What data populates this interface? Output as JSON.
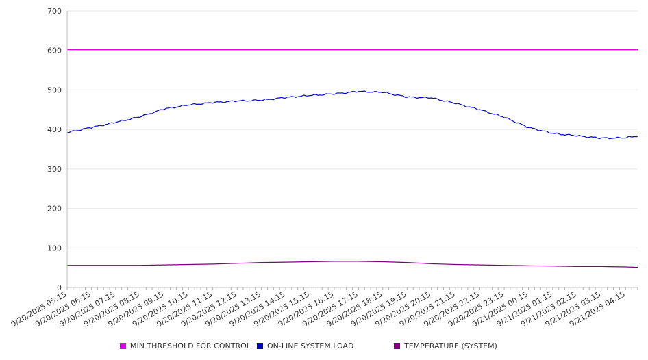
{
  "chart_data": {
    "type": "line",
    "ylim": [
      0,
      700
    ],
    "yticks": [
      0,
      100,
      200,
      300,
      400,
      500,
      600,
      700
    ],
    "x_start": "9/20/2025 05:15",
    "x_end": "9/21/2025 04:45",
    "x_tick_labels": [
      "9/20/2025 05:15",
      "9/20/2025 06:15",
      "9/20/2025 07:15",
      "9/20/2025 08:15",
      "9/20/2025 09:15",
      "9/20/2025 10:15",
      "9/20/2025 11:15",
      "9/20/2025 12:15",
      "9/20/2025 13:15",
      "9/20/2025 14:15",
      "9/20/2025 15:15",
      "9/20/2025 16:15",
      "9/20/2025 17:15",
      "9/20/2025 18:15",
      "9/20/2025 19:15",
      "9/20/2025 20:15",
      "9/20/2025 21:15",
      "9/20/2025 22:15",
      "9/20/2025 23:15",
      "9/21/2025 00:15",
      "9/21/2025 01:15",
      "9/21/2025 02:15",
      "9/21/2025 03:15",
      "9/21/2025 04:15"
    ],
    "grid": true,
    "legend_position": "bottom",
    "series": [
      {
        "name": "MIN THRESHOLD FOR CONTROL",
        "color": "#e000e0",
        "x": [
          "9/20/2025 05:15",
          "9/21/2025 04:45"
        ],
        "y": [
          602,
          602
        ]
      },
      {
        "name": "ON-LINE SYSTEM LOAD",
        "color": "#0000cc",
        "x": [
          "9/20/2025 05:15",
          "9/20/2025 06:15",
          "9/20/2025 07:15",
          "9/20/2025 08:15",
          "9/20/2025 09:15",
          "9/20/2025 10:15",
          "9/20/2025 11:15",
          "9/20/2025 12:15",
          "9/20/2025 13:15",
          "9/20/2025 14:15",
          "9/20/2025 15:15",
          "9/20/2025 16:15",
          "9/20/2025 17:15",
          "9/20/2025 18:15",
          "9/20/2025 19:15",
          "9/20/2025 20:15",
          "9/20/2025 21:15",
          "9/20/2025 22:15",
          "9/20/2025 23:15",
          "9/21/2025 00:15",
          "9/21/2025 01:15",
          "9/21/2025 02:15",
          "9/21/2025 03:15",
          "9/21/2025 04:15",
          "9/21/2025 04:45"
        ],
        "y": [
          392,
          405,
          418,
          432,
          452,
          462,
          468,
          472,
          474,
          481,
          486,
          490,
          496,
          494,
          482,
          480,
          466,
          450,
          431,
          405,
          390,
          384,
          378,
          379,
          384
        ]
      },
      {
        "name": "TEMPERATURE (SYSTEM)",
        "color": "#800080",
        "x": [
          "9/20/2025 05:15",
          "9/20/2025 06:15",
          "9/20/2025 07:15",
          "9/20/2025 08:15",
          "9/20/2025 09:15",
          "9/20/2025 10:15",
          "9/20/2025 11:15",
          "9/20/2025 12:15",
          "9/20/2025 13:15",
          "9/20/2025 14:15",
          "9/20/2025 15:15",
          "9/20/2025 16:15",
          "9/20/2025 17:15",
          "9/20/2025 18:15",
          "9/20/2025 19:15",
          "9/20/2025 20:15",
          "9/20/2025 21:15",
          "9/20/2025 22:15",
          "9/20/2025 23:15",
          "9/21/2025 00:15",
          "9/21/2025 01:15",
          "9/21/2025 02:15",
          "9/21/2025 03:15",
          "9/21/2025 04:15",
          "9/21/2025 04:45"
        ],
        "y": [
          56,
          56,
          56,
          56,
          57,
          58,
          59,
          61,
          63,
          64,
          65,
          66,
          66,
          65,
          63,
          60,
          58,
          57,
          56,
          55,
          54,
          53,
          53,
          52,
          51
        ]
      }
    ]
  }
}
